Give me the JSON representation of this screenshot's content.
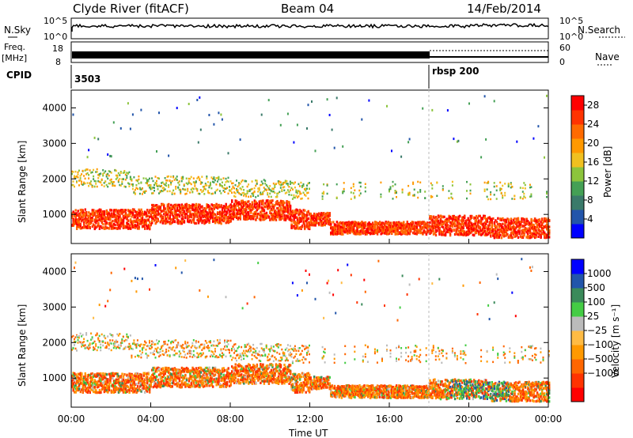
{
  "header": {
    "station": "Clyde River (fitACF)",
    "beam": "Beam 04",
    "date": "14/Feb/2014"
  },
  "left_labels": {
    "nsky": "N.Sky",
    "nsky_hi": "10^5",
    "nsky_lo": "10^0",
    "freq": "Freq.",
    "freq_unit": "[MHz]",
    "freq_hi": "18",
    "freq_lo": "8",
    "cpid": "CPID"
  },
  "right_labels": {
    "nsearch": "N.Search",
    "nsearch_hi": "10^5",
    "nsearch_lo": "10^0",
    "nave": "Nave",
    "nave_hi": "60",
    "nave_lo": "0"
  },
  "cpid_entries": [
    {
      "label": "3503",
      "time_h": 0.0
    },
    {
      "label": "rbsp 200",
      "time_h": 18.0
    }
  ],
  "colors": {
    "power": [
      "#0000ff",
      "#2255aa",
      "#3a7a6a",
      "#44a055",
      "#8cc43c",
      "#f0c020",
      "#ff9900",
      "#ff6a00",
      "#ff3300",
      "#ff0000"
    ],
    "velocity": [
      "#ff0000",
      "#ff3300",
      "#ff6600",
      "#ff9900",
      "#ffbb44",
      "#bbbbbb",
      "#44cc44",
      "#3a8a5a",
      "#2255aa",
      "#0000ff"
    ]
  },
  "chart_data": [
    {
      "type": "heatmap",
      "name": "power",
      "ylabel": "Slant Range [km]",
      "xlabel": "Time UT",
      "xlim": [
        0,
        24
      ],
      "ylim": [
        180,
        4500
      ],
      "x_ticks": [
        "00:00",
        "04:00",
        "08:00",
        "12:00",
        "16:00",
        "20:00",
        "00:00"
      ],
      "y_ticks": [
        1000,
        2000,
        3000,
        4000
      ],
      "colorbar": {
        "label": "Power [dB]",
        "ticks": [
          4,
          8,
          12,
          16,
          20,
          24,
          28
        ],
        "range": [
          0,
          30
        ]
      },
      "features": [
        {
          "desc": "near-range band",
          "x": [
            0,
            24
          ],
          "range_center_km": [
            900,
            1000,
            1050,
            1100,
            700,
            650,
            600
          ],
          "value_db": 28
        },
        {
          "desc": "mid band",
          "x": [
            0,
            12
          ],
          "range_center_km": 1900,
          "value_db": 12
        }
      ]
    },
    {
      "type": "heatmap",
      "name": "velocity",
      "ylabel": "Slant Range [km]",
      "xlabel": "Time UT",
      "xlim": [
        0,
        24
      ],
      "ylim": [
        180,
        4500
      ],
      "x_ticks": [
        "00:00",
        "04:00",
        "08:00",
        "12:00",
        "16:00",
        "20:00",
        "00:00"
      ],
      "y_ticks": [
        1000,
        2000,
        3000,
        4000
      ],
      "colorbar": {
        "label": "Velocity [m s⁻¹]",
        "ticks": [
          "1000",
          "500",
          "100",
          "25",
          "−25",
          "−100",
          "−500",
          "−1000"
        ]
      },
      "features": [
        {
          "desc": "near-range band",
          "x": [
            0,
            24
          ],
          "value_ms": -150
        },
        {
          "desc": "mid band",
          "x": [
            0,
            12
          ],
          "range_center_km": 1900,
          "value_ms": -80
        }
      ]
    }
  ]
}
